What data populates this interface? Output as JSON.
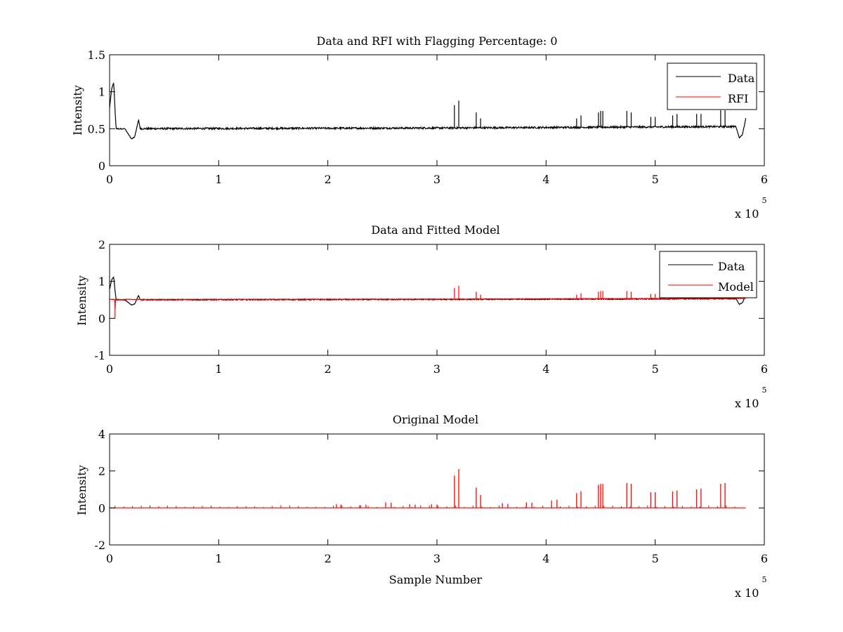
{
  "figure": {
    "background": "#ffffff",
    "axis_color": "#000000",
    "data_color": "#000000",
    "rfi_color": "#ff0000"
  },
  "chart_data": [
    {
      "type": "line",
      "title": "Data and RFI with Flagging Percentage: 0",
      "xlabel": "",
      "ylabel": "Intensity",
      "xlim": [
        0,
        600000
      ],
      "ylim": [
        0,
        1.5
      ],
      "xticks": [
        0,
        1,
        2,
        3,
        4,
        5,
        6
      ],
      "yticks": [
        0,
        0.5,
        1,
        1.5
      ],
      "x_multiplier": {
        "base": "x 10",
        "exponent": "5"
      },
      "grid": false,
      "legend": {
        "placement": "top-right",
        "entries": [
          "Data",
          "RFI"
        ]
      },
      "series": [
        {
          "name": "Data",
          "color": "#000000",
          "style": "noisy-line",
          "baseline": 0.51,
          "noise": 0.012,
          "drift": [
            [
              0,
              0.5
            ],
            [
              300000,
              0.51
            ],
            [
              583000,
              0.53
            ]
          ],
          "features": [
            [
              0,
              0.78
            ],
            [
              2000,
              1.05
            ],
            [
              3800,
              1.12
            ],
            [
              5000,
              0.75
            ],
            [
              6000,
              0.5
            ],
            [
              14000,
              0.5
            ],
            [
              20000,
              0.36
            ],
            [
              23000,
              0.39
            ],
            [
              26500,
              0.62
            ],
            [
              28000,
              0.51
            ],
            [
              574000,
              0.53
            ],
            [
              577000,
              0.38
            ],
            [
              580000,
              0.42
            ],
            [
              583000,
              0.64
            ]
          ],
          "spikes": [
            [
              316000,
              0.82
            ],
            [
              320000,
              0.88
            ],
            [
              336000,
              0.72
            ],
            [
              340000,
              0.64
            ],
            [
              428000,
              0.64
            ],
            [
              432000,
              0.68
            ],
            [
              448000,
              0.72
            ],
            [
              450000,
              0.74
            ],
            [
              452000,
              0.74
            ],
            [
              474000,
              0.74
            ],
            [
              478000,
              0.72
            ],
            [
              496000,
              0.66
            ],
            [
              500000,
              0.66
            ],
            [
              516000,
              0.68
            ],
            [
              520000,
              0.7
            ],
            [
              538000,
              0.7
            ],
            [
              542000,
              0.7
            ],
            [
              560000,
              0.75
            ],
            [
              564000,
              0.75
            ]
          ]
        },
        {
          "name": "RFI",
          "color": "#ff0000",
          "style": "flat",
          "points": [],
          "spikes": []
        }
      ]
    },
    {
      "type": "line",
      "title": "Data and Fitted Model",
      "xlabel": "",
      "ylabel": "Intensity",
      "xlim": [
        0,
        600000
      ],
      "ylim": [
        -1,
        2
      ],
      "xticks": [
        0,
        1,
        2,
        3,
        4,
        5,
        6
      ],
      "yticks": [
        -1,
        0,
        1,
        2
      ],
      "x_multiplier": {
        "base": "x 10",
        "exponent": "5"
      },
      "grid": false,
      "legend": {
        "placement": "top-right",
        "entries": [
          "Data",
          "Model"
        ]
      },
      "series": [
        {
          "name": "Data",
          "color": "#000000",
          "style": "noisy-line",
          "baseline": 0.51,
          "noise": 0.012,
          "drift": [
            [
              0,
              0.5
            ],
            [
              300000,
              0.51
            ],
            [
              583000,
              0.53
            ]
          ],
          "features": [
            [
              0,
              0.78
            ],
            [
              2000,
              1.05
            ],
            [
              3800,
              1.12
            ],
            [
              5000,
              0.75
            ],
            [
              6000,
              0.5
            ],
            [
              14000,
              0.5
            ],
            [
              20000,
              0.36
            ],
            [
              23000,
              0.39
            ],
            [
              26500,
              0.62
            ],
            [
              28000,
              0.51
            ],
            [
              574000,
              0.53
            ],
            [
              577000,
              0.38
            ],
            [
              580000,
              0.42
            ],
            [
              583000,
              0.64
            ]
          ],
          "spikes": []
        },
        {
          "name": "Model",
          "color": "#ff0000",
          "style": "noisy-line",
          "baseline": 0.52,
          "noise": 0.008,
          "drift": [
            [
              0,
              0.51
            ],
            [
              300000,
              0.52
            ],
            [
              583000,
              0.54
            ]
          ],
          "features": [
            [
              5000,
              0.0
            ],
            [
              5200,
              0.52
            ]
          ],
          "spikes": [
            [
              316000,
              0.82
            ],
            [
              320000,
              0.88
            ],
            [
              336000,
              0.72
            ],
            [
              340000,
              0.64
            ],
            [
              428000,
              0.64
            ],
            [
              432000,
              0.68
            ],
            [
              448000,
              0.72
            ],
            [
              450000,
              0.74
            ],
            [
              452000,
              0.74
            ],
            [
              474000,
              0.74
            ],
            [
              478000,
              0.72
            ],
            [
              496000,
              0.66
            ],
            [
              500000,
              0.66
            ],
            [
              516000,
              0.68
            ],
            [
              520000,
              0.7
            ],
            [
              538000,
              0.7
            ],
            [
              542000,
              0.7
            ],
            [
              560000,
              0.75
            ],
            [
              564000,
              0.75
            ]
          ]
        }
      ]
    },
    {
      "type": "line",
      "title": "Original Model",
      "xlabel": "Sample Number",
      "ylabel": "Intensity",
      "xlim": [
        0,
        600000
      ],
      "ylim": [
        -2,
        4
      ],
      "xticks": [
        0,
        1,
        2,
        3,
        4,
        5,
        6
      ],
      "yticks": [
        -2,
        0,
        2,
        4
      ],
      "x_multiplier": {
        "base": "x 10",
        "exponent": "5"
      },
      "grid": false,
      "legend": null,
      "series": [
        {
          "color": "#ff0000",
          "style": "spikes",
          "baseline": 0.0,
          "range": [
            0,
            583000
          ],
          "spikes": [
            [
              316000,
              1.75
            ],
            [
              320000,
              2.1
            ],
            [
              336000,
              1.1
            ],
            [
              340000,
              0.7
            ],
            [
              428000,
              0.8
            ],
            [
              432000,
              0.9
            ],
            [
              448000,
              1.25
            ],
            [
              450000,
              1.3
            ],
            [
              452000,
              1.3
            ],
            [
              474000,
              1.35
            ],
            [
              478000,
              1.3
            ],
            [
              496000,
              0.85
            ],
            [
              500000,
              0.85
            ],
            [
              516000,
              0.9
            ],
            [
              520000,
              0.95
            ],
            [
              538000,
              1.0
            ],
            [
              542000,
              1.05
            ],
            [
              560000,
              1.3
            ],
            [
              564000,
              1.35
            ],
            [
              253000,
              0.3
            ],
            [
              258000,
              0.28
            ],
            [
              208000,
              0.2
            ],
            [
              212000,
              0.18
            ],
            [
              230000,
              0.15
            ],
            [
              235000,
              0.18
            ],
            [
              275000,
              0.2
            ],
            [
              280000,
              0.18
            ],
            [
              295000,
              0.2
            ],
            [
              300000,
              0.18
            ],
            [
              360000,
              0.25
            ],
            [
              365000,
              0.22
            ],
            [
              382000,
              0.3
            ],
            [
              387000,
              0.28
            ],
            [
              405000,
              0.4
            ],
            [
              410000,
              0.45
            ]
          ],
          "small_spikes": {
            "start": 5000,
            "end": 580000,
            "step": 8000,
            "height": 0.1
          }
        }
      ]
    }
  ]
}
